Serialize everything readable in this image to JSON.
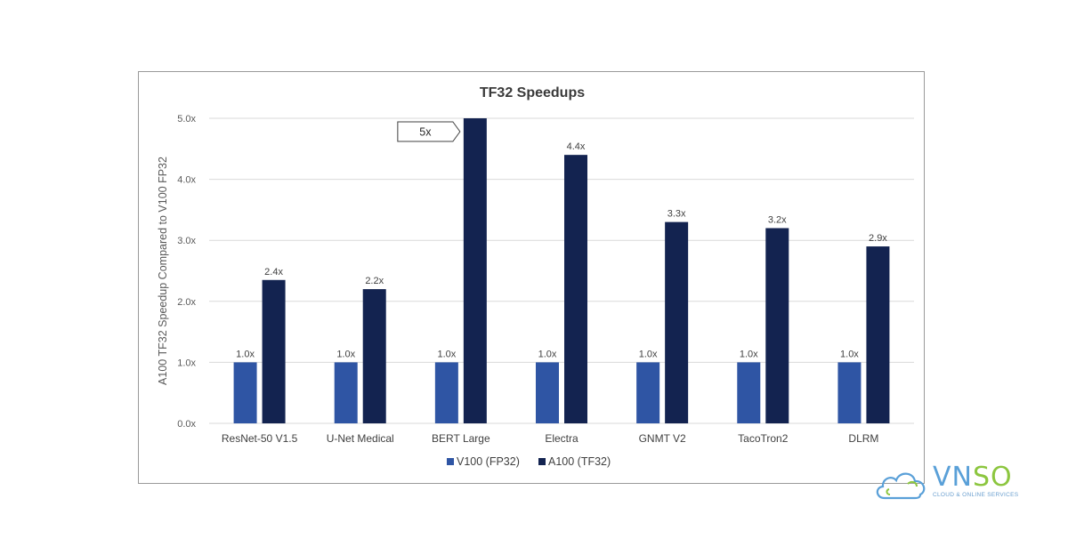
{
  "chart_data": {
    "type": "bar",
    "title": "TF32 Speedups",
    "ylabel": "A100 TF32 Speedup Compared to V100 FP32",
    "xlabel": "",
    "ylim": [
      0,
      5
    ],
    "yticks": [
      "0.0x",
      "1.0x",
      "2.0x",
      "3.0x",
      "4.0x",
      "5.0x"
    ],
    "ytick_values": [
      0,
      1,
      2,
      3,
      4,
      5
    ],
    "grid": "horizontal",
    "legend_position": "bottom",
    "categories": [
      "ResNet-50 V1.5",
      "U-Net Medical",
      "BERT Large",
      "Electra",
      "GNMT V2",
      "TacoTron2",
      "DLRM"
    ],
    "series": [
      {
        "name": "V100 (FP32)",
        "color": "#2f55a4",
        "values": [
          1.0,
          1.0,
          1.0,
          1.0,
          1.0,
          1.0,
          1.0
        ],
        "labels": [
          "1.0x",
          "1.0x",
          "1.0x",
          "1.0x",
          "1.0x",
          "1.0x",
          "1.0x"
        ]
      },
      {
        "name": "A100 (TF32)",
        "color": "#132350",
        "values": [
          2.35,
          2.2,
          5.0,
          4.4,
          3.3,
          3.2,
          2.9
        ],
        "labels": [
          "2.4x",
          "2.2x",
          "",
          "4.4x",
          "3.3x",
          "3.2x",
          "2.9x"
        ]
      }
    ],
    "annotation": {
      "text": "5x",
      "category": "BERT Large"
    }
  },
  "logo": {
    "word_v": "VN",
    "word_so": "SO",
    "tagline": "CLOUD & ONLINE SERVICES",
    "icon": "cloud-icon"
  }
}
